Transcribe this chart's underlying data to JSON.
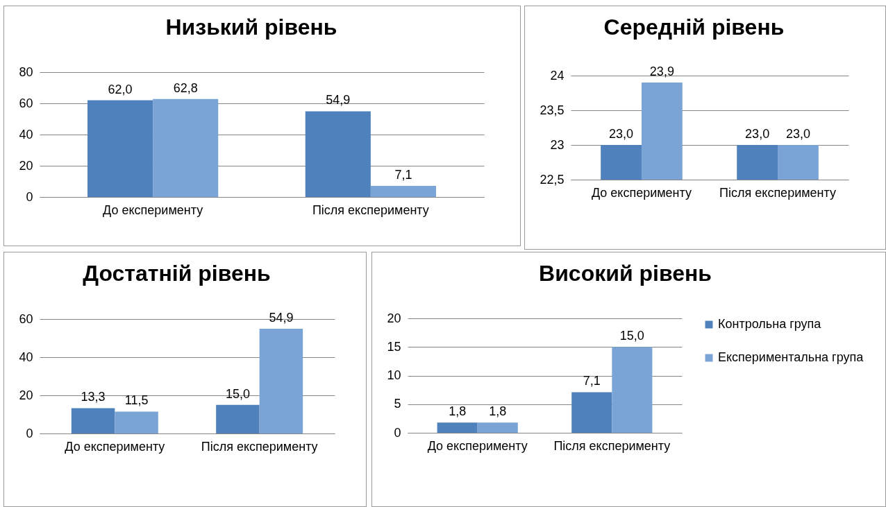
{
  "chart_data": [
    {
      "type": "bar",
      "title": "Низький рівень",
      "categories": [
        "До експерименту",
        "Після експерименту"
      ],
      "ylim": [
        0,
        80
      ],
      "yticks": [
        0,
        20,
        40,
        60,
        80
      ],
      "grid": "y",
      "series": [
        {
          "color": "#4f81bd",
          "values": [
            62.0,
            54.9
          ],
          "value_labels": [
            "62,0",
            "54,9"
          ]
        },
        {
          "color": "#7aa3d6",
          "values": [
            62.8,
            7.1
          ],
          "value_labels": [
            "62,8",
            "7,1"
          ]
        }
      ]
    },
    {
      "type": "bar",
      "title": "Середній рівень",
      "categories": [
        "До експерименту",
        "Після експерименту"
      ],
      "ylim": [
        22.5,
        24
      ],
      "yticks": [
        {
          "value": 22.5,
          "label": "22,5"
        },
        23,
        {
          "value": 23.5,
          "label": "23,5"
        },
        24
      ],
      "grid": "y",
      "series": [
        {
          "color": "#4f81bd",
          "values": [
            23.0,
            23.0
          ],
          "value_labels": [
            "23,0",
            "23,0"
          ]
        },
        {
          "color": "#7aa3d6",
          "values": [
            23.9,
            23.0
          ],
          "value_labels": [
            "23,9",
            "23,0"
          ]
        }
      ]
    },
    {
      "type": "bar",
      "title": "Достатній рівень",
      "categories": [
        "До експерименту",
        "Після експерименту"
      ],
      "ylim": [
        0,
        60
      ],
      "yticks": [
        0,
        20,
        40,
        60
      ],
      "grid": "y",
      "series": [
        {
          "color": "#4f81bd",
          "values": [
            13.3,
            15.0
          ],
          "value_labels": [
            "13,3",
            "15,0"
          ]
        },
        {
          "color": "#7aa3d6",
          "values": [
            11.5,
            54.9
          ],
          "value_labels": [
            "11,5",
            "54,9"
          ]
        }
      ]
    },
    {
      "type": "bar",
      "title": "Високий рівень",
      "categories": [
        "До експерименту",
        "Після експерименту"
      ],
      "ylim": [
        0,
        20
      ],
      "yticks": [
        0,
        5,
        10,
        15,
        20
      ],
      "grid": "y",
      "legend": "right",
      "series": [
        {
          "name": "Контрольна група",
          "color": "#4f81bd",
          "values": [
            1.8,
            7.1
          ],
          "value_labels": [
            "1,8",
            "7,1"
          ]
        },
        {
          "name": "Експериментальна група",
          "color": "#7aa3d6",
          "values": [
            1.8,
            15.0
          ],
          "value_labels": [
            "1,8",
            "15,0"
          ]
        }
      ]
    }
  ]
}
